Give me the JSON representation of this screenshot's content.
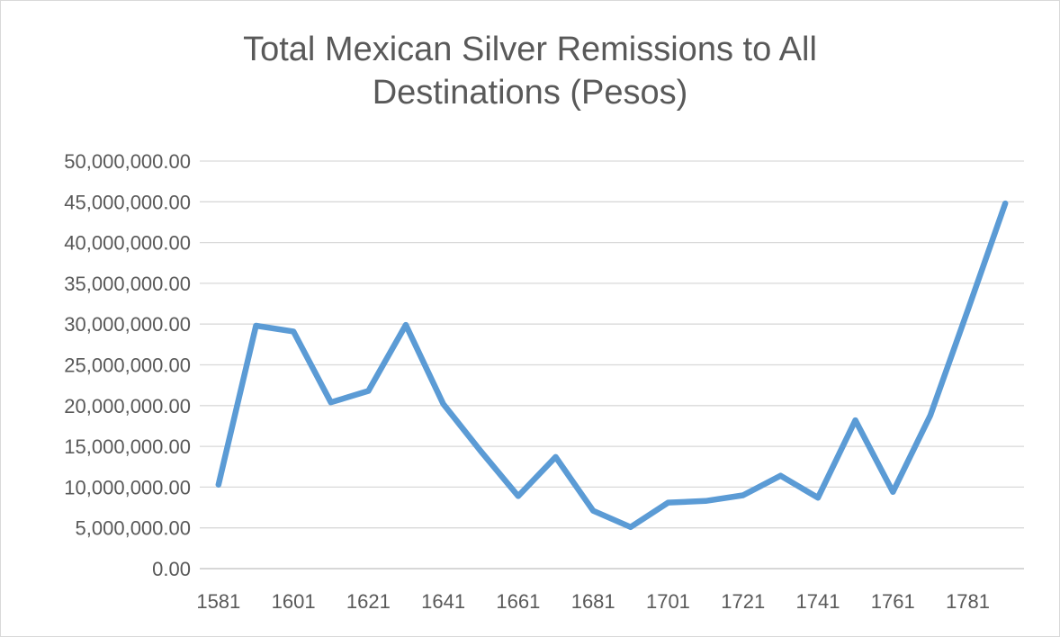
{
  "chart_data": {
    "type": "line",
    "title_lines": [
      "Total Mexican Silver Remissions to All",
      "Destinations (Pesos)"
    ],
    "title": "Total Mexican Silver Remissions to All Destinations (Pesos)",
    "xlabel": "",
    "ylabel": "",
    "ylim": [
      0,
      50000000
    ],
    "grid": true,
    "legend": "none",
    "y_ticks": [
      0,
      5000000,
      10000000,
      15000000,
      20000000,
      25000000,
      30000000,
      35000000,
      40000000,
      45000000,
      50000000
    ],
    "y_tick_labels": [
      "0.00",
      "5,000,000.00",
      "10,000,000.00",
      "15,000,000.00",
      "20,000,000.00",
      "25,000,000.00",
      "30,000,000.00",
      "35,000,000.00",
      "40,000,000.00",
      "45,000,000.00",
      "50,000,000.00"
    ],
    "x_tick_labels": [
      "1581",
      "1601",
      "1621",
      "1641",
      "1661",
      "1681",
      "1701",
      "1721",
      "1741",
      "1761",
      "1781"
    ],
    "x": [
      1581,
      1591,
      1601,
      1611,
      1621,
      1631,
      1641,
      1651,
      1661,
      1671,
      1681,
      1691,
      1701,
      1711,
      1721,
      1731,
      1741,
      1751,
      1761,
      1771,
      1781,
      1791
    ],
    "series": [
      {
        "values": [
          10300000,
          29800000,
          29100000,
          20400000,
          21800000,
          29900000,
          20200000,
          14400000,
          8900000,
          13700000,
          7100000,
          5100000,
          8100000,
          8300000,
          9000000,
          11400000,
          8700000,
          18200000,
          9400000,
          18800000,
          31700000,
          44800000
        ]
      }
    ],
    "colors": {
      "line": "#5b9bd5",
      "grid": "#d9d9d9",
      "text": "#595959"
    }
  }
}
